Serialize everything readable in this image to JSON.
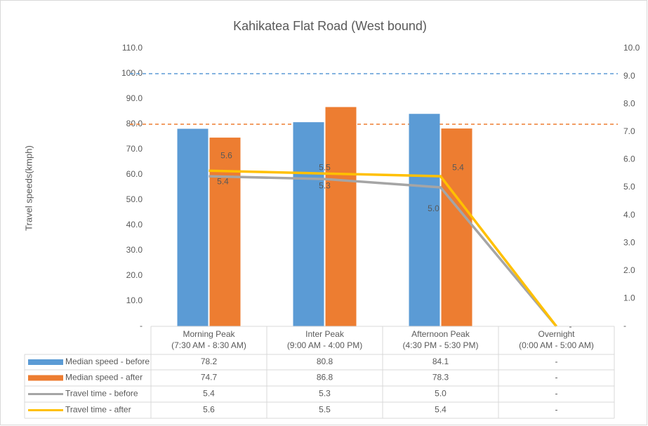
{
  "chart_data": {
    "type": "bar",
    "title": "Kahikatea Flat Road (West bound)",
    "y_label": "Travel speeds(kmph)",
    "categories": [
      [
        "Morning Peak",
        "(7:30 AM - 8:30 AM)"
      ],
      [
        "Inter Peak",
        "(9:00 AM - 4:00 PM)"
      ],
      [
        "Afternoon Peak",
        "(4:30 PM - 5:30 PM)"
      ],
      [
        "Overnight",
        "(0:00 AM - 5:00 AM)"
      ]
    ],
    "series": [
      {
        "name": "Median speed - before",
        "type": "bar",
        "color": "#5b9bd5",
        "values": [
          78.2,
          80.8,
          84.1,
          0
        ],
        "value_labels": [
          "78.2",
          "80.8",
          "84.1",
          "-"
        ]
      },
      {
        "name": "Median speed - after",
        "type": "bar",
        "color": "#ed7d31",
        "values": [
          74.7,
          86.8,
          78.3,
          0
        ],
        "value_labels": [
          "74.7",
          "86.8",
          "78.3",
          "-"
        ]
      },
      {
        "name": "Travel time - before",
        "type": "line",
        "axis": "y2",
        "color": "#a5a5a5",
        "values": [
          5.4,
          5.3,
          5.0,
          0
        ],
        "value_labels": [
          "5.4",
          "5.3",
          "5.0",
          "-"
        ]
      },
      {
        "name": "Travel time - after",
        "type": "line",
        "axis": "y2",
        "color": "#ffc000",
        "values": [
          5.6,
          5.5,
          5.4,
          0
        ],
        "value_labels": [
          "5.6",
          "5.5",
          "5.4",
          "-"
        ]
      }
    ],
    "ylim": [
      0,
      110
    ],
    "yticks": [
      {
        "value": 0,
        "label": "-"
      },
      {
        "value": 10,
        "label": "10.0"
      },
      {
        "value": 20,
        "label": "20.0"
      },
      {
        "value": 30,
        "label": "30.0"
      },
      {
        "value": 40,
        "label": "40.0"
      },
      {
        "value": 50,
        "label": "50.0"
      },
      {
        "value": 60,
        "label": "60.0"
      },
      {
        "value": 70,
        "label": "70.0"
      },
      {
        "value": 80,
        "label": "80.0"
      },
      {
        "value": 90,
        "label": "90.0"
      },
      {
        "value": 100,
        "label": "100.0"
      },
      {
        "value": 110,
        "label": "110.0"
      }
    ],
    "y2lim": [
      0,
      10
    ],
    "y2ticks": [
      {
        "value": 0,
        "label": "-"
      },
      {
        "value": 1,
        "label": "1.0"
      },
      {
        "value": 2,
        "label": "2.0"
      },
      {
        "value": 3,
        "label": "3.0"
      },
      {
        "value": 4,
        "label": "4.0"
      },
      {
        "value": 5,
        "label": "5.0"
      },
      {
        "value": 6,
        "label": "6.0"
      },
      {
        "value": 7,
        "label": "7.0"
      },
      {
        "value": 8,
        "label": "8.0"
      },
      {
        "value": 9,
        "label": "9.0"
      },
      {
        "value": 10,
        "label": "10.0"
      }
    ],
    "reference_lines": [
      {
        "value": 100,
        "color": "#5b9bd5"
      },
      {
        "value": 80,
        "color": "#ed7d31"
      }
    ]
  }
}
